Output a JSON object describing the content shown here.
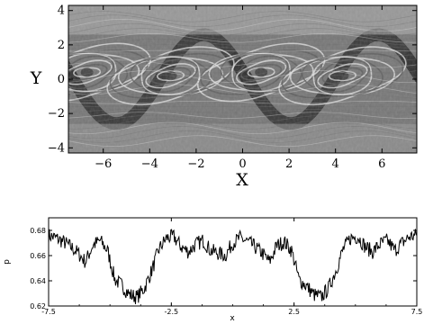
{
  "chart_data": [
    {
      "type": "heatmap",
      "title": "",
      "xlabel": "X",
      "ylabel": "Y",
      "xlim": [
        -7.5,
        7.5
      ],
      "ylim": [
        -4.3,
        4.3
      ],
      "x_ticks": [
        -6,
        -4,
        -2,
        0,
        2,
        4,
        6
      ],
      "y_ticks": [
        -4,
        -2,
        0,
        2,
        4
      ],
      "x_tick_labels": [
        "−6",
        "−4",
        "−2",
        "0",
        "2",
        "4",
        "6"
      ],
      "y_tick_labels": [
        "−4",
        "−2",
        "0",
        "2",
        "4"
      ],
      "colormap": "grayscale",
      "pattern": "two periodic cat's-eye vortex swirls (Kelvin–Helmholtz-like) with period 7.5 in X"
    },
    {
      "type": "line",
      "title": "",
      "xlabel": "x",
      "ylabel": "p",
      "xlim": [
        -7.5,
        7.5
      ],
      "ylim": [
        0.62,
        0.69
      ],
      "x_ticks": [
        -7.5,
        -2.5,
        2.5,
        7.5
      ],
      "y_ticks": [
        0.62,
        0.64,
        0.66,
        0.68
      ],
      "x_tick_labels": [
        "-7.5",
        "-2.5",
        "2.5",
        "7.5"
      ],
      "y_tick_labels": [
        "0.62",
        "0.64",
        "0.66",
        "0.68"
      ],
      "series": [
        {
          "x": [
            -7.5,
            -7.2,
            -6.9,
            -6.6,
            -6.3,
            -6.0,
            -5.7,
            -5.4,
            -5.1,
            -4.8,
            -4.5,
            -4.2,
            -3.9,
            -3.6,
            -3.3,
            -3.0,
            -2.7,
            -2.4,
            -2.1,
            -1.8,
            -1.5,
            -1.2,
            -0.9,
            -0.6,
            -0.3,
            0.0,
            0.3,
            0.6,
            0.9,
            1.2,
            1.5,
            1.8,
            2.1,
            2.4,
            2.7,
            3.0,
            3.3,
            3.6,
            3.9,
            4.2,
            4.5,
            4.8,
            5.1,
            5.4,
            5.7,
            6.0,
            6.3,
            6.6,
            6.9,
            7.2,
            7.5
          ],
          "values": [
            0.676,
            0.674,
            0.671,
            0.667,
            0.662,
            0.655,
            0.668,
            0.672,
            0.664,
            0.641,
            0.636,
            0.629,
            0.627,
            0.634,
            0.648,
            0.665,
            0.674,
            0.675,
            0.667,
            0.663,
            0.669,
            0.672,
            0.664,
            0.662,
            0.66,
            0.67,
            0.674,
            0.671,
            0.667,
            0.662,
            0.655,
            0.668,
            0.671,
            0.664,
            0.641,
            0.636,
            0.629,
            0.627,
            0.634,
            0.648,
            0.665,
            0.674,
            0.675,
            0.667,
            0.663,
            0.669,
            0.672,
            0.664,
            0.67,
            0.675,
            0.676
          ]
        }
      ]
    }
  ]
}
